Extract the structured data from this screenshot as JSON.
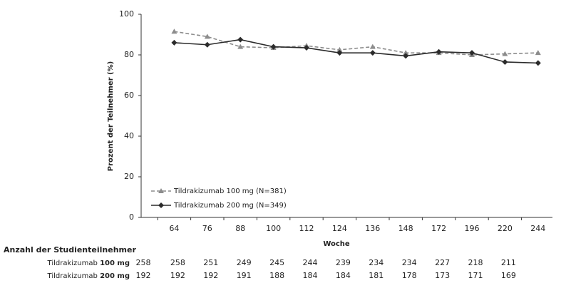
{
  "chart_data": {
    "type": "line",
    "y_label": "Prozent der Teilnehmer (%)",
    "x_label": "Woche",
    "categories": [
      "64",
      "76",
      "88",
      "100",
      "112",
      "124",
      "136",
      "148",
      "172",
      "196",
      "220",
      "244"
    ],
    "series": [
      {
        "name": "Tildrakizumab 100 mg (N=381)",
        "color": "#8c8c8c",
        "marker": "triangle",
        "linestyle": "dashed",
        "values": [
          91.5,
          89,
          84,
          83.5,
          84.5,
          82.5,
          84,
          81,
          81,
          80,
          80.5,
          81
        ]
      },
      {
        "name": "Tildrakizumab 200 mg (N=349)",
        "color": "#2b2b2b",
        "marker": "diamond",
        "linestyle": "solid",
        "values": [
          86,
          85,
          87.5,
          84,
          83.5,
          81,
          81,
          79.5,
          81.5,
          81,
          76.5,
          76
        ]
      }
    ],
    "ylim": [
      0,
      100
    ],
    "yticks": [
      0,
      20,
      40,
      60,
      80,
      100
    ],
    "grid": false,
    "legend": "lower left"
  },
  "table": {
    "title": "Anzahl der Studienteilnehmer",
    "rows": [
      {
        "name": "Tildrakizumab",
        "dose": "100 mg",
        "counts": [
          258,
          258,
          251,
          249,
          245,
          244,
          239,
          234,
          234,
          227,
          218,
          211
        ]
      },
      {
        "name": "Tildrakizumab",
        "dose": "200 mg",
        "counts": [
          192,
          192,
          192,
          191,
          188,
          184,
          184,
          181,
          178,
          173,
          171,
          169
        ]
      }
    ]
  }
}
